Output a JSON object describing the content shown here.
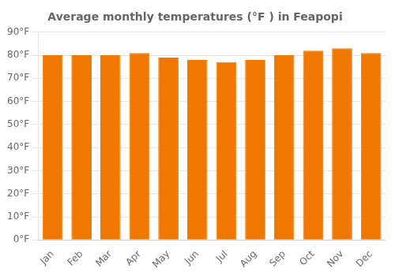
{
  "chart_data": {
    "type": "bar",
    "title": "Average monthly temperatures (°F ) in Feapopi",
    "categories": [
      "Jan",
      "Feb",
      "Mar",
      "Apr",
      "May",
      "Jun",
      "Jul",
      "Aug",
      "Sep",
      "Oct",
      "Nov",
      "Dec"
    ],
    "values": [
      80,
      80,
      80,
      81,
      79,
      78,
      77,
      78,
      80,
      82,
      83,
      81
    ],
    "color": "#F07800",
    "ylim": [
      0,
      90
    ],
    "yticks": [
      {
        "value": 0,
        "label": "0°F"
      },
      {
        "value": 10,
        "label": "10°F"
      },
      {
        "value": 20,
        "label": "20°F"
      },
      {
        "value": 30,
        "label": "30°F"
      },
      {
        "value": 40,
        "label": "40°F"
      },
      {
        "value": 50,
        "label": "50°F"
      },
      {
        "value": 60,
        "label": "60°F"
      },
      {
        "value": 70,
        "label": "70°F"
      },
      {
        "value": 80,
        "label": "80°F"
      },
      {
        "value": 90,
        "label": "90°F"
      }
    ],
    "grid": true
  }
}
